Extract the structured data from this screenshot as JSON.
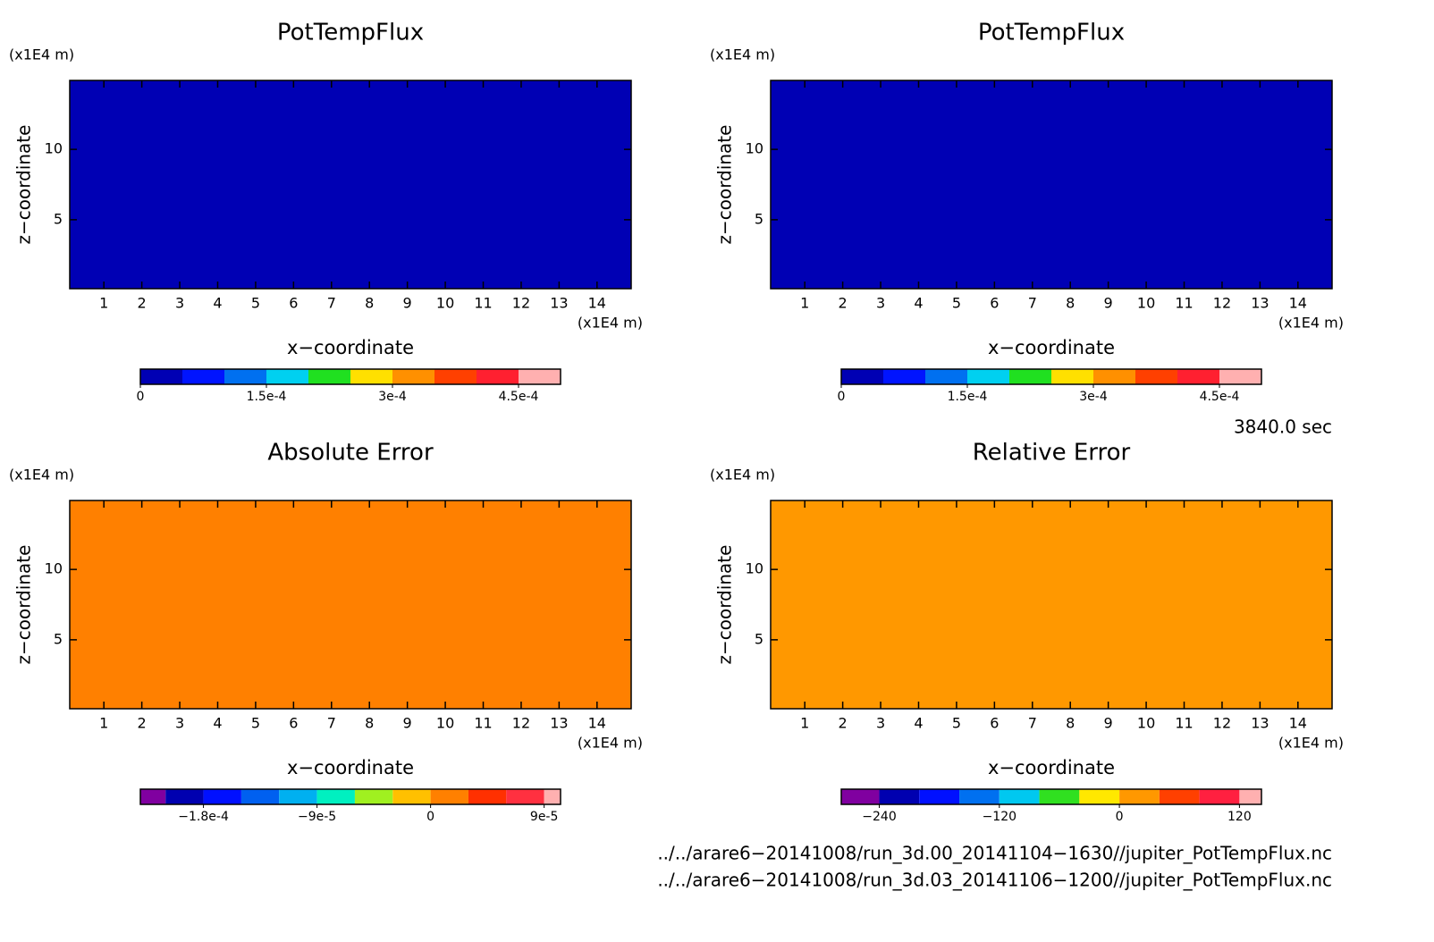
{
  "chart_data": [
    {
      "type": "heatmap",
      "title": "PotTempFlux",
      "xlabel": "x−coordinate",
      "ylabel": "z−coordinate",
      "xunit": "(x1E4 m)",
      "yunit": "(x1E4 m)",
      "xlim": [
        0.1,
        14.9
      ],
      "ylim": [
        0.1,
        14.9
      ],
      "xticks": [
        1,
        2,
        3,
        4,
        5,
        6,
        7,
        8,
        9,
        10,
        11,
        12,
        13,
        14
      ],
      "yticks": [
        5,
        10
      ],
      "field_value": 0,
      "colorbar": {
        "bounds": [
          0,
          5e-05,
          0.0001,
          0.00015,
          0.0002,
          0.00025,
          0.0003,
          0.00035,
          0.0004,
          0.00045,
          0.0005
        ],
        "colors": [
          "#0000b4",
          "#0014ff",
          "#0070f0",
          "#00d0f0",
          "#20e020",
          "#ffe000",
          "#ff9000",
          "#ff4000",
          "#ff2030",
          "#ffb0b0"
        ],
        "ticks": [
          0,
          {
            "value": 0.00015,
            "label": "1.5e-4"
          },
          {
            "value": 0.0003,
            "label": "3e-4"
          },
          {
            "value": 0.00045,
            "label": "4.5e-4"
          }
        ]
      }
    },
    {
      "type": "heatmap",
      "title": "PotTempFlux",
      "xlabel": "x−coordinate",
      "ylabel": "z−coordinate",
      "xunit": "(x1E4 m)",
      "yunit": "(x1E4 m)",
      "xlim": [
        0.1,
        14.9
      ],
      "ylim": [
        0.1,
        14.9
      ],
      "xticks": [
        1,
        2,
        3,
        4,
        5,
        6,
        7,
        8,
        9,
        10,
        11,
        12,
        13,
        14
      ],
      "yticks": [
        5,
        10
      ],
      "field_value": 0,
      "colorbar": {
        "bounds": [
          0,
          5e-05,
          0.0001,
          0.00015,
          0.0002,
          0.00025,
          0.0003,
          0.00035,
          0.0004,
          0.00045,
          0.0005
        ],
        "colors": [
          "#0000b4",
          "#0014ff",
          "#0070f0",
          "#00d0f0",
          "#20e020",
          "#ffe000",
          "#ff9000",
          "#ff4000",
          "#ff2030",
          "#ffb0b0"
        ],
        "ticks": [
          0,
          {
            "value": 0.00015,
            "label": "1.5e-4"
          },
          {
            "value": 0.0003,
            "label": "3e-4"
          },
          {
            "value": 0.00045,
            "label": "4.5e-4"
          }
        ]
      }
    },
    {
      "type": "heatmap",
      "title": "Absolute Error",
      "xlabel": "x−coordinate",
      "ylabel": "z−coordinate",
      "xunit": "(x1E4 m)",
      "yunit": "(x1E4 m)",
      "xlim": [
        0.1,
        14.9
      ],
      "ylim": [
        0.1,
        14.9
      ],
      "xticks": [
        1,
        2,
        3,
        4,
        5,
        6,
        7,
        8,
        9,
        10,
        11,
        12,
        13,
        14
      ],
      "yticks": [
        5,
        10
      ],
      "field_value": 0,
      "colorbar": {
        "bounds": [
          -0.00023,
          -0.00021,
          -0.00018,
          -0.00015,
          -0.00012,
          -9e-05,
          -6e-05,
          -3e-05,
          0,
          3e-05,
          6e-05,
          9e-05,
          0.000103
        ],
        "colors": [
          "#8000a0",
          "#0000b0",
          "#0010ff",
          "#0060f0",
          "#00b0f0",
          "#00f0c0",
          "#a0f020",
          "#ffc000",
          "#ff8000",
          "#ff3000",
          "#ff3040",
          "#ffb0b0"
        ],
        "ticks": [
          {
            "value": -0.00018,
            "label": "−1.8e-4"
          },
          {
            "value": -9e-05,
            "label": "−9e-5"
          },
          0,
          {
            "value": 9e-05,
            "label": "9e-5"
          }
        ]
      }
    },
    {
      "type": "heatmap",
      "title": "Relative Error",
      "xlabel": "x−coordinate",
      "ylabel": "z−coordinate",
      "xunit": "(x1E4 m)",
      "yunit": "(x1E4 m)",
      "xlim": [
        0.1,
        14.9
      ],
      "ylim": [
        0.1,
        14.9
      ],
      "xticks": [
        1,
        2,
        3,
        4,
        5,
        6,
        7,
        8,
        9,
        10,
        11,
        12,
        13,
        14
      ],
      "yticks": [
        5,
        10
      ],
      "field_value": 0,
      "colorbar": {
        "bounds": [
          -278,
          -240,
          -200,
          -160,
          -120,
          -80,
          -40,
          0,
          40,
          80,
          120,
          142
        ],
        "colors": [
          "#8000a0",
          "#0000b0",
          "#0010ff",
          "#0070f0",
          "#00c8f0",
          "#30e020",
          "#ffe800",
          "#ff9800",
          "#ff4000",
          "#ff2040",
          "#ffb0b0"
        ],
        "ticks": [
          {
            "value": -240,
            "label": "−240"
          },
          {
            "value": -120,
            "label": "−120"
          },
          0,
          120
        ]
      }
    }
  ],
  "annotations": {
    "time": "3840.0 sec",
    "files": [
      "../../arare6−20141008/run_3d.00_20141104−1630//jupiter_PotTempFlux.nc",
      "../../arare6−20141008/run_3d.03_20141106−1200//jupiter_PotTempFlux.nc"
    ]
  }
}
